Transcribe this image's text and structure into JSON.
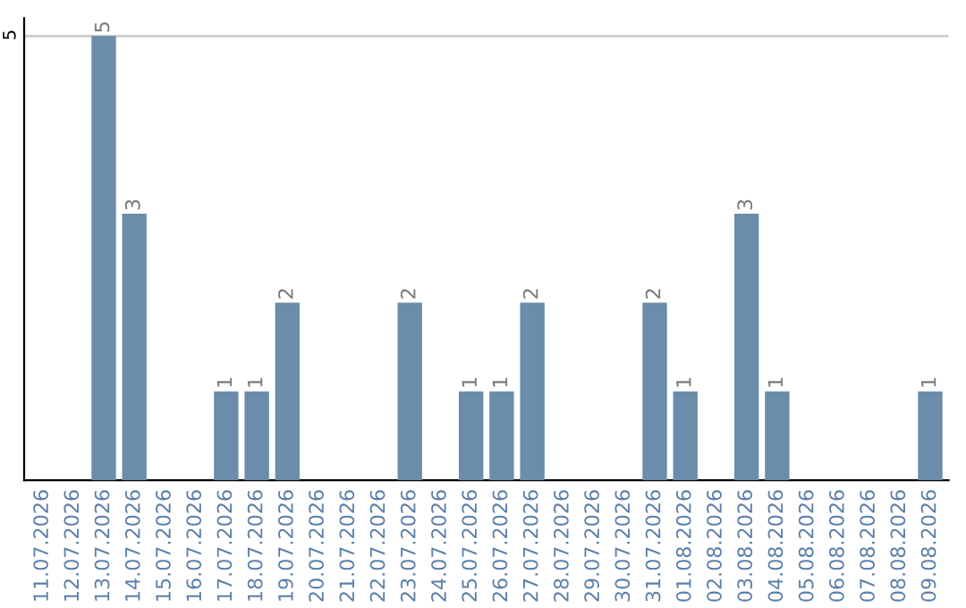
{
  "chart_data": {
    "type": "bar",
    "categories": [
      "11.07.2026",
      "12.07.2026",
      "13.07.2026",
      "14.07.2026",
      "15.07.2026",
      "16.07.2026",
      "17.07.2026",
      "18.07.2026",
      "19.07.2026",
      "20.07.2026",
      "21.07.2026",
      "22.07.2026",
      "23.07.2026",
      "24.07.2026",
      "25.07.2026",
      "26.07.2026",
      "27.07.2026",
      "28.07.2026",
      "29.07.2026",
      "30.07.2026",
      "31.07.2026",
      "01.08.2026",
      "02.08.2026",
      "03.08.2026",
      "04.08.2026",
      "05.08.2026",
      "06.08.2026",
      "07.08.2026",
      "08.08.2026",
      "09.08.2026"
    ],
    "values": [
      null,
      null,
      5,
      3,
      null,
      null,
      1,
      1,
      2,
      null,
      null,
      null,
      2,
      null,
      1,
      1,
      2,
      null,
      null,
      null,
      2,
      1,
      null,
      3,
      1,
      null,
      null,
      null,
      null,
      1
    ],
    "color": "#6b8cab",
    "ylim": [
      0,
      5.2
    ],
    "yticks": [
      5
    ],
    "grid": "y",
    "data_labels": true,
    "legend": false
  }
}
